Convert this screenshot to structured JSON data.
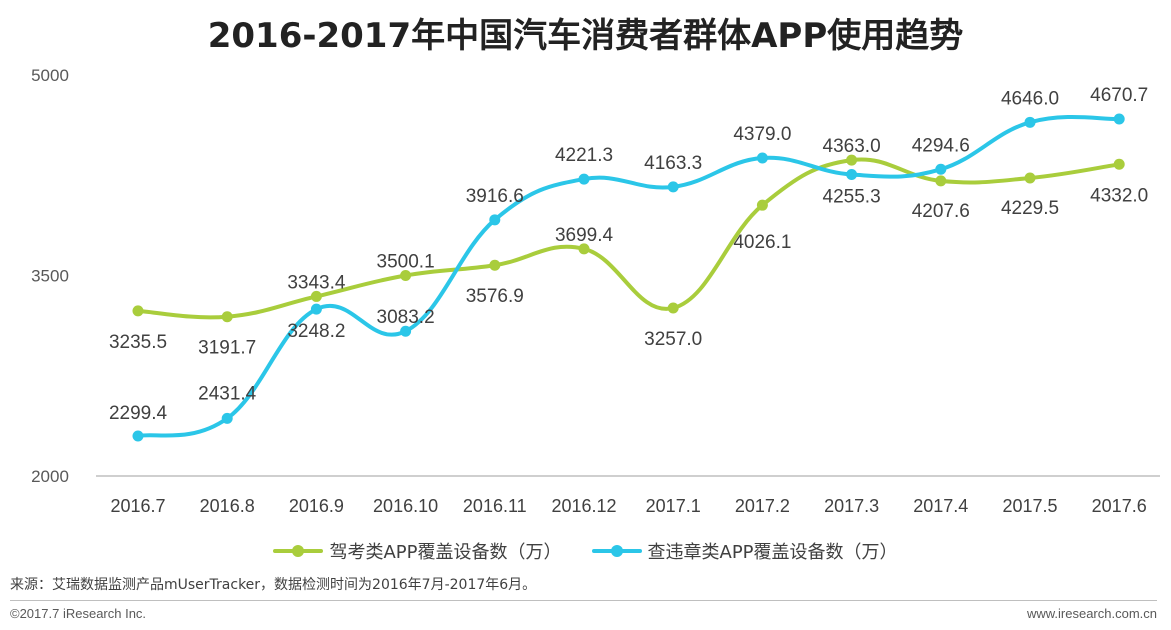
{
  "chart_data": {
    "type": "line",
    "title": "2016-2017年中国汽车消费者群体APP使用趋势",
    "categories": [
      "2016.7",
      "2016.8",
      "2016.9",
      "2016.10",
      "2016.11",
      "2016.12",
      "2017.1",
      "2017.2",
      "2017.3",
      "2017.4",
      "2017.5",
      "2017.6"
    ],
    "ylim": [
      2000,
      5000
    ],
    "yticks": [
      "2000",
      "3500",
      "5000"
    ],
    "series": [
      {
        "name": "驾考类APP覆盖设备数（万）",
        "color": "#a9cd3c",
        "values": [
          3235.5,
          3191.7,
          3343.4,
          3500.1,
          3576.9,
          3699.4,
          3257.0,
          4026.1,
          4363.0,
          4207.6,
          4229.5,
          4332.0
        ],
        "labels": [
          "3235.5",
          "3191.7",
          "3343.4",
          "3500.1",
          "3576.9",
          "3699.4",
          "3257.0",
          "4026.1",
          "4363.0",
          "4207.6",
          "4229.5",
          "4332.0"
        ]
      },
      {
        "name": "查违章类APP覆盖设备数（万）",
        "color": "#2bc6e8",
        "values": [
          2299.4,
          2431.4,
          3248.2,
          3083.2,
          3916.6,
          4221.3,
          4163.3,
          4379.0,
          4255.3,
          4294.6,
          4646.0,
          4670.7
        ],
        "labels": [
          "2299.4",
          "2431.4",
          "3248.2",
          "3083.2",
          "3916.6",
          "4221.3",
          "4163.3",
          "4379.0",
          "4255.3",
          "4294.6",
          "4646.0",
          "4670.7"
        ]
      }
    ],
    "legend": "bottom",
    "grid": false
  },
  "footer": {
    "source": "来源：艾瑞数据监测产品mUserTracker，数据检测时间为2016年7月-2017年6月。",
    "copyright": "©2017.7 iResearch Inc.",
    "site": "www.iresearch.com.cn"
  }
}
